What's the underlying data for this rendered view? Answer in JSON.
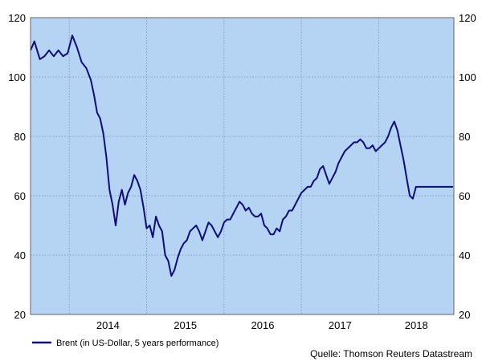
{
  "chart_data": {
    "type": "line",
    "title": "",
    "xlabel": "",
    "ylabel": "",
    "ylim": [
      20,
      120
    ],
    "y_ticks": [
      20,
      40,
      60,
      80,
      100,
      120
    ],
    "x_tick_labels": [
      "2014",
      "2015",
      "2016",
      "2017",
      "2018"
    ],
    "grid": true,
    "legend_position": "bottom-left",
    "source": "Quelle: Thomson Reuters Datastream",
    "colors": {
      "plot_background": "#b5d3f2",
      "line": "#0d0d7a",
      "grid": "#7a8fb0"
    },
    "series": [
      {
        "name": "Brent (in US-Dollar, 5 years performance)",
        "x": [
          2013.5,
          2013.55,
          2013.62,
          2013.68,
          2013.74,
          2013.8,
          2013.86,
          2013.92,
          2013.98,
          2014.04,
          2014.1,
          2014.16,
          2014.22,
          2014.28,
          2014.32,
          2014.36,
          2014.4,
          2014.44,
          2014.48,
          2014.52,
          2014.56,
          2014.6,
          2014.64,
          2014.68,
          2014.72,
          2014.76,
          2014.8,
          2014.84,
          2014.88,
          2014.92,
          2014.96,
          2015.0,
          2015.04,
          2015.08,
          2015.12,
          2015.16,
          2015.2,
          2015.24,
          2015.28,
          2015.32,
          2015.36,
          2015.4,
          2015.44,
          2015.48,
          2015.52,
          2015.56,
          2015.6,
          2015.64,
          2015.68,
          2015.72,
          2015.76,
          2015.8,
          2015.84,
          2015.88,
          2015.92,
          2015.96,
          2016.0,
          2016.04,
          2016.08,
          2016.12,
          2016.16,
          2016.2,
          2016.24,
          2016.28,
          2016.32,
          2016.36,
          2016.4,
          2016.44,
          2016.48,
          2016.52,
          2016.56,
          2016.6,
          2016.64,
          2016.68,
          2016.72,
          2016.76,
          2016.8,
          2016.84,
          2016.88,
          2016.92,
          2016.96,
          2017.0,
          2017.04,
          2017.08,
          2017.12,
          2017.16,
          2017.2,
          2017.24,
          2017.28,
          2017.32,
          2017.36,
          2017.4,
          2017.44,
          2017.48,
          2017.52,
          2017.56,
          2017.6,
          2017.64,
          2017.68,
          2017.72,
          2017.76,
          2017.8,
          2017.84,
          2017.88,
          2017.92,
          2017.96,
          2018.0,
          2018.04,
          2018.08,
          2018.12,
          2018.16,
          2018.2,
          2018.24,
          2018.28,
          2018.32,
          2018.36,
          2018.4,
          2018.44,
          2018.48,
          2018.52,
          2018.56,
          2018.6,
          2018.64,
          2018.68,
          2018.72,
          2018.76,
          2018.8,
          2018.84,
          2018.88,
          2018.92,
          2018.96
        ],
        "values": [
          109,
          112,
          106,
          107,
          109,
          107,
          109,
          107,
          108,
          114,
          110,
          105,
          103,
          99,
          94,
          88,
          86,
          81,
          73,
          62,
          57,
          50,
          58,
          62,
          57,
          61,
          63,
          67,
          65,
          62,
          56,
          49,
          50,
          46,
          53,
          50,
          48,
          40,
          38,
          33,
          35,
          39,
          42,
          44,
          45,
          48,
          49,
          50,
          48,
          45,
          48,
          51,
          50,
          48,
          46,
          48,
          51,
          52,
          52,
          54,
          56,
          58,
          57,
          55,
          56,
          54,
          53,
          53,
          54,
          50,
          49,
          47,
          47,
          49,
          48,
          52,
          53,
          55,
          55,
          57,
          59,
          61,
          62,
          63,
          63,
          65,
          66,
          69,
          70,
          67,
          64,
          66,
          68,
          71,
          73,
          75,
          76,
          77,
          78,
          78,
          79,
          78,
          76,
          76,
          77,
          75,
          76,
          77,
          78,
          80,
          83,
          85,
          82,
          77,
          72,
          66,
          60,
          59,
          63,
          63,
          63,
          63,
          63,
          63,
          63,
          63,
          63,
          63,
          63,
          63,
          63
        ]
      }
    ]
  }
}
